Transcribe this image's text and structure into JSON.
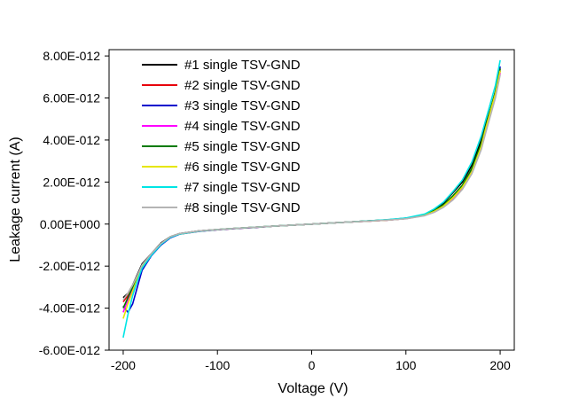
{
  "chart_data": {
    "type": "line",
    "title": "",
    "xlabel": "Voltage (V)",
    "ylabel": "Leakage current (A)",
    "xlim": [
      -215,
      215
    ],
    "ylim": [
      -6e-12,
      8.3e-12
    ],
    "xticks": [
      -200,
      -100,
      0,
      100,
      200
    ],
    "xtick_labels": [
      "-200",
      "-100",
      "0",
      "100",
      "200"
    ],
    "yticks": [
      -6e-12,
      -4e-12,
      -2e-12,
      0,
      2e-12,
      4e-12,
      6e-12,
      8e-12
    ],
    "ytick_labels": [
      "-6.00E-012",
      "-4.00E-012",
      "-2.00E-012",
      "0.00E+000",
      "2.00E-012",
      "4.00E-012",
      "6.00E-012",
      "8.00E-012"
    ],
    "grid": false,
    "legend_position": "top-left",
    "series": [
      {
        "name": "#1 single TSV-GND",
        "color": "#000000",
        "x": [
          -200,
          -195,
          -190,
          -185,
          -180,
          -170,
          -160,
          -150,
          -140,
          -120,
          -100,
          -80,
          -60,
          -40,
          -20,
          0,
          20,
          40,
          60,
          80,
          100,
          120,
          130,
          140,
          150,
          160,
          170,
          180,
          185,
          190,
          195,
          200
        ],
        "y": [
          -3.5e-12,
          -3.3e-12,
          -2.9e-12,
          -2.4e-12,
          -1.9e-12,
          -1.4e-12,
          -9e-13,
          -6e-13,
          -4.5e-13,
          -3.3e-13,
          -2.6e-13,
          -2e-13,
          -1.5e-13,
          -1e-13,
          -5e-14,
          0,
          5e-14,
          1e-13,
          1.5e-13,
          2e-13,
          2.8e-13,
          4.5e-13,
          7e-13,
          1e-12,
          1.5e-12,
          2e-12,
          2.8e-12,
          4e-12,
          4.8e-12,
          5.5e-12,
          6.2e-12,
          7.3e-12
        ]
      },
      {
        "name": "#2 single TSV-GND",
        "color": "#e8000b",
        "x": [
          -200,
          -195,
          -190,
          -185,
          -180,
          -170,
          -160,
          -150,
          -140,
          -120,
          -100,
          -80,
          -60,
          -40,
          -20,
          0,
          20,
          40,
          60,
          80,
          100,
          120,
          130,
          140,
          150,
          160,
          170,
          180,
          185,
          190,
          195,
          200
        ],
        "y": [
          -3.7e-12,
          -3.4e-12,
          -3e-12,
          -2.5e-12,
          -2e-12,
          -1.45e-12,
          -9.5e-13,
          -6.2e-13,
          -4.7e-13,
          -3.4e-13,
          -2.7e-13,
          -2.1e-13,
          -1.6e-13,
          -1e-13,
          -5e-14,
          0,
          5e-14,
          1e-13,
          1.4e-13,
          1.9e-13,
          2.6e-13,
          4.2e-13,
          6e-13,
          8.5e-13,
          1.25e-12,
          1.75e-12,
          2.5e-12,
          3.7e-12,
          4.6e-12,
          5.4e-12,
          6.2e-12,
          7.4e-12
        ]
      },
      {
        "name": "#3 single TSV-GND",
        "color": "#0000cc",
        "x": [
          -200,
          -195,
          -190,
          -185,
          -180,
          -170,
          -160,
          -150,
          -140,
          -120,
          -100,
          -80,
          -60,
          -40,
          -20,
          0,
          20,
          40,
          60,
          80,
          100,
          120,
          130,
          140,
          150,
          160,
          170,
          180,
          185,
          190,
          195,
          200
        ],
        "y": [
          -3.9e-12,
          -4.2e-12,
          -3.8e-12,
          -3e-12,
          -2.2e-12,
          -1.5e-12,
          -1e-12,
          -6.5e-13,
          -4.8e-13,
          -3.5e-13,
          -2.7e-13,
          -2.1e-13,
          -1.6e-13,
          -1e-13,
          -5e-14,
          0,
          5e-14,
          1e-13,
          1.4e-13,
          1.9e-13,
          2.6e-13,
          4.2e-13,
          6.2e-13,
          9e-13,
          1.3e-12,
          1.8e-12,
          2.6e-12,
          3.8e-12,
          4.7e-12,
          5.5e-12,
          6.3e-12,
          7.5e-12
        ]
      },
      {
        "name": "#4 single TSV-GND",
        "color": "#ff00ff",
        "x": [
          -200,
          -195,
          -190,
          -185,
          -180,
          -170,
          -160,
          -150,
          -140,
          -120,
          -100,
          -80,
          -60,
          -40,
          -20,
          0,
          20,
          40,
          60,
          80,
          100,
          120,
          130,
          140,
          150,
          160,
          170,
          180,
          185,
          190,
          195,
          200
        ],
        "y": [
          -4.2e-12,
          -3.6e-12,
          -3.1e-12,
          -2.6e-12,
          -2.05e-12,
          -1.45e-12,
          -9.5e-13,
          -6.2e-13,
          -4.6e-13,
          -3.3e-13,
          -2.6e-13,
          -2e-13,
          -1.5e-13,
          -1e-13,
          -5e-14,
          0,
          5e-14,
          1e-13,
          1.4e-13,
          1.9e-13,
          2.6e-13,
          4.1e-13,
          5.8e-13,
          8.2e-13,
          1.2e-12,
          1.7e-12,
          2.45e-12,
          3.6e-12,
          4.5e-12,
          5.3e-12,
          6.1e-12,
          7.2e-12
        ]
      },
      {
        "name": "#5 single TSV-GND",
        "color": "#007a00",
        "x": [
          -200,
          -195,
          -190,
          -185,
          -180,
          -170,
          -160,
          -150,
          -140,
          -120,
          -100,
          -80,
          -60,
          -40,
          -20,
          0,
          20,
          40,
          60,
          80,
          100,
          120,
          130,
          140,
          150,
          160,
          170,
          180,
          185,
          190,
          195,
          200
        ],
        "y": [
          -4e-12,
          -3.5e-12,
          -3e-12,
          -2.5e-12,
          -2e-12,
          -1.42e-12,
          -9.3e-13,
          -6.1e-13,
          -4.6e-13,
          -3.3e-13,
          -2.6e-13,
          -2e-13,
          -1.5e-13,
          -1e-13,
          -5e-14,
          0,
          5e-14,
          1e-13,
          1.5e-13,
          2e-13,
          2.7e-13,
          4.3e-13,
          6.4e-13,
          9.2e-13,
          1.35e-12,
          1.85e-12,
          2.65e-12,
          3.85e-12,
          4.7e-12,
          5.5e-12,
          6.3e-12,
          7.4e-12
        ]
      },
      {
        "name": "#6 single TSV-GND",
        "color": "#e6e600",
        "x": [
          -200,
          -195,
          -190,
          -185,
          -180,
          -170,
          -160,
          -150,
          -140,
          -120,
          -100,
          -80,
          -60,
          -40,
          -20,
          0,
          20,
          40,
          60,
          80,
          100,
          120,
          130,
          140,
          150,
          160,
          170,
          180,
          185,
          190,
          195,
          200
        ],
        "y": [
          -4.5e-12,
          -3.8e-12,
          -3.2e-12,
          -2.6e-12,
          -2.05e-12,
          -1.45e-12,
          -9.5e-13,
          -6.2e-13,
          -4.7e-13,
          -3.4e-13,
          -2.6e-13,
          -2e-13,
          -1.5e-13,
          -1e-13,
          -5e-14,
          0,
          5e-14,
          1e-13,
          1.4e-13,
          1.9e-13,
          2.6e-13,
          4.2e-13,
          6e-13,
          8.6e-13,
          1.26e-12,
          1.76e-12,
          2.5e-12,
          3.7e-12,
          4.6e-12,
          5.4e-12,
          6.2e-12,
          7.3e-12
        ]
      },
      {
        "name": "#7 single TSV-GND",
        "color": "#00e5e5",
        "x": [
          -200,
          -195,
          -190,
          -185,
          -180,
          -170,
          -160,
          -150,
          -140,
          -120,
          -100,
          -80,
          -60,
          -40,
          -20,
          0,
          20,
          40,
          60,
          80,
          100,
          120,
          130,
          140,
          150,
          160,
          170,
          180,
          185,
          190,
          195,
          200
        ],
        "y": [
          -5.4e-12,
          -4.3e-12,
          -3.4e-12,
          -2.7e-12,
          -2.1e-12,
          -1.48e-12,
          -9.7e-13,
          -6.3e-13,
          -4.7e-13,
          -3.4e-13,
          -2.6e-13,
          -2e-13,
          -1.5e-13,
          -1e-13,
          -5e-14,
          0,
          5e-14,
          1e-13,
          1.5e-13,
          2.1e-13,
          2.9e-13,
          4.8e-13,
          7.2e-13,
          1.05e-12,
          1.55e-12,
          2.1e-12,
          2.95e-12,
          4.2e-12,
          5e-12,
          5.8e-12,
          6.6e-12,
          7.8e-12
        ]
      },
      {
        "name": "#8 single TSV-GND",
        "color": "#b4b4b4",
        "x": [
          -200,
          -195,
          -190,
          -185,
          -180,
          -170,
          -160,
          -150,
          -140,
          -120,
          -100,
          -80,
          -60,
          -40,
          -20,
          0,
          20,
          40,
          60,
          80,
          100,
          120,
          130,
          140,
          150,
          160,
          170,
          180,
          185,
          190,
          195,
          200
        ],
        "y": [
          -3.6e-12,
          -3.3e-12,
          -2.9e-12,
          -2.45e-12,
          -1.95e-12,
          -1.4e-12,
          -9.2e-13,
          -6e-13,
          -4.5e-13,
          -3.3e-13,
          -2.6e-13,
          -2e-13,
          -1.5e-13,
          -1e-13,
          -5e-14,
          0,
          5e-14,
          1e-13,
          1.4e-13,
          1.9e-13,
          2.5e-13,
          4e-13,
          5.6e-13,
          8e-13,
          1.15e-12,
          1.65e-12,
          2.4e-12,
          3.55e-12,
          4.4e-12,
          5.2e-12,
          6e-12,
          7.1e-12
        ]
      }
    ]
  }
}
